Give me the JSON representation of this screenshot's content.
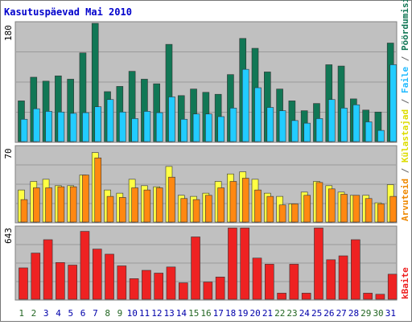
{
  "chart_data": [
    {
      "type": "bar",
      "title": "Kasutuspäevad Mai 2010",
      "y_label": "180",
      "categories": [
        "1",
        "2",
        "3",
        "4",
        "5",
        "6",
        "7",
        "8",
        "9",
        "10",
        "11",
        "12",
        "13",
        "14",
        "15",
        "16",
        "17",
        "18",
        "19",
        "20",
        "21",
        "22",
        "23",
        "24",
        "25",
        "26",
        "27",
        "28",
        "29",
        "30",
        "31"
      ],
      "weekend_days": [
        "1",
        "2",
        "8",
        "9",
        "15",
        "16",
        "22",
        "23",
        "29",
        "30"
      ],
      "ylim": [
        0,
        180
      ],
      "series": [
        {
          "name": "Pöördumisi",
          "color": "#117755",
          "values": [
            62,
            98,
            92,
            100,
            95,
            135,
            180,
            76,
            84,
            107,
            95,
            88,
            148,
            70,
            80,
            75,
            72,
            102,
            157,
            142,
            106,
            80,
            62,
            47,
            58,
            117,
            115,
            65,
            48,
            45,
            150
          ]
        },
        {
          "name": "Faile",
          "color": "#22ccff",
          "values": [
            34,
            50,
            46,
            45,
            43,
            44,
            53,
            64,
            45,
            35,
            46,
            44,
            68,
            34,
            42,
            42,
            38,
            51,
            110,
            82,
            52,
            47,
            32,
            28,
            35,
            64,
            51,
            56,
            30,
            17,
            117
          ]
        }
      ]
    },
    {
      "type": "bar",
      "y_label": "70",
      "ylim": [
        0,
        70
      ],
      "series": [
        {
          "name": "Külastajad",
          "color": "#ffff44",
          "values": [
            30,
            38,
            40,
            34,
            34,
            44,
            65,
            30,
            27,
            40,
            34,
            33,
            52,
            25,
            24,
            27,
            38,
            45,
            47,
            40,
            27,
            24,
            17,
            28,
            38,
            34,
            28,
            25,
            25,
            18,
            35
          ]
        },
        {
          "name": "Arvuteid",
          "color": "#ff8811",
          "values": [
            21,
            32,
            32,
            33,
            33,
            44,
            60,
            24,
            23,
            32,
            30,
            32,
            42,
            22,
            21,
            25,
            32,
            38,
            41,
            30,
            24,
            16,
            17,
            25,
            37,
            31,
            26,
            25,
            22,
            17,
            24
          ]
        }
      ]
    },
    {
      "type": "bar",
      "y_label": "643",
      "ylim": [
        0,
        643
      ],
      "series": [
        {
          "name": "kBaite",
          "color": "#ee2222",
          "values": [
            282,
            415,
            535,
            330,
            307,
            610,
            451,
            405,
            300,
            185,
            260,
            235,
            290,
            148,
            560,
            155,
            200,
            640,
            640,
            370,
            315,
            55,
            315,
            55,
            640,
            355,
            390,
            535,
            55,
            45,
            225
          ]
        }
      ]
    }
  ]
}
